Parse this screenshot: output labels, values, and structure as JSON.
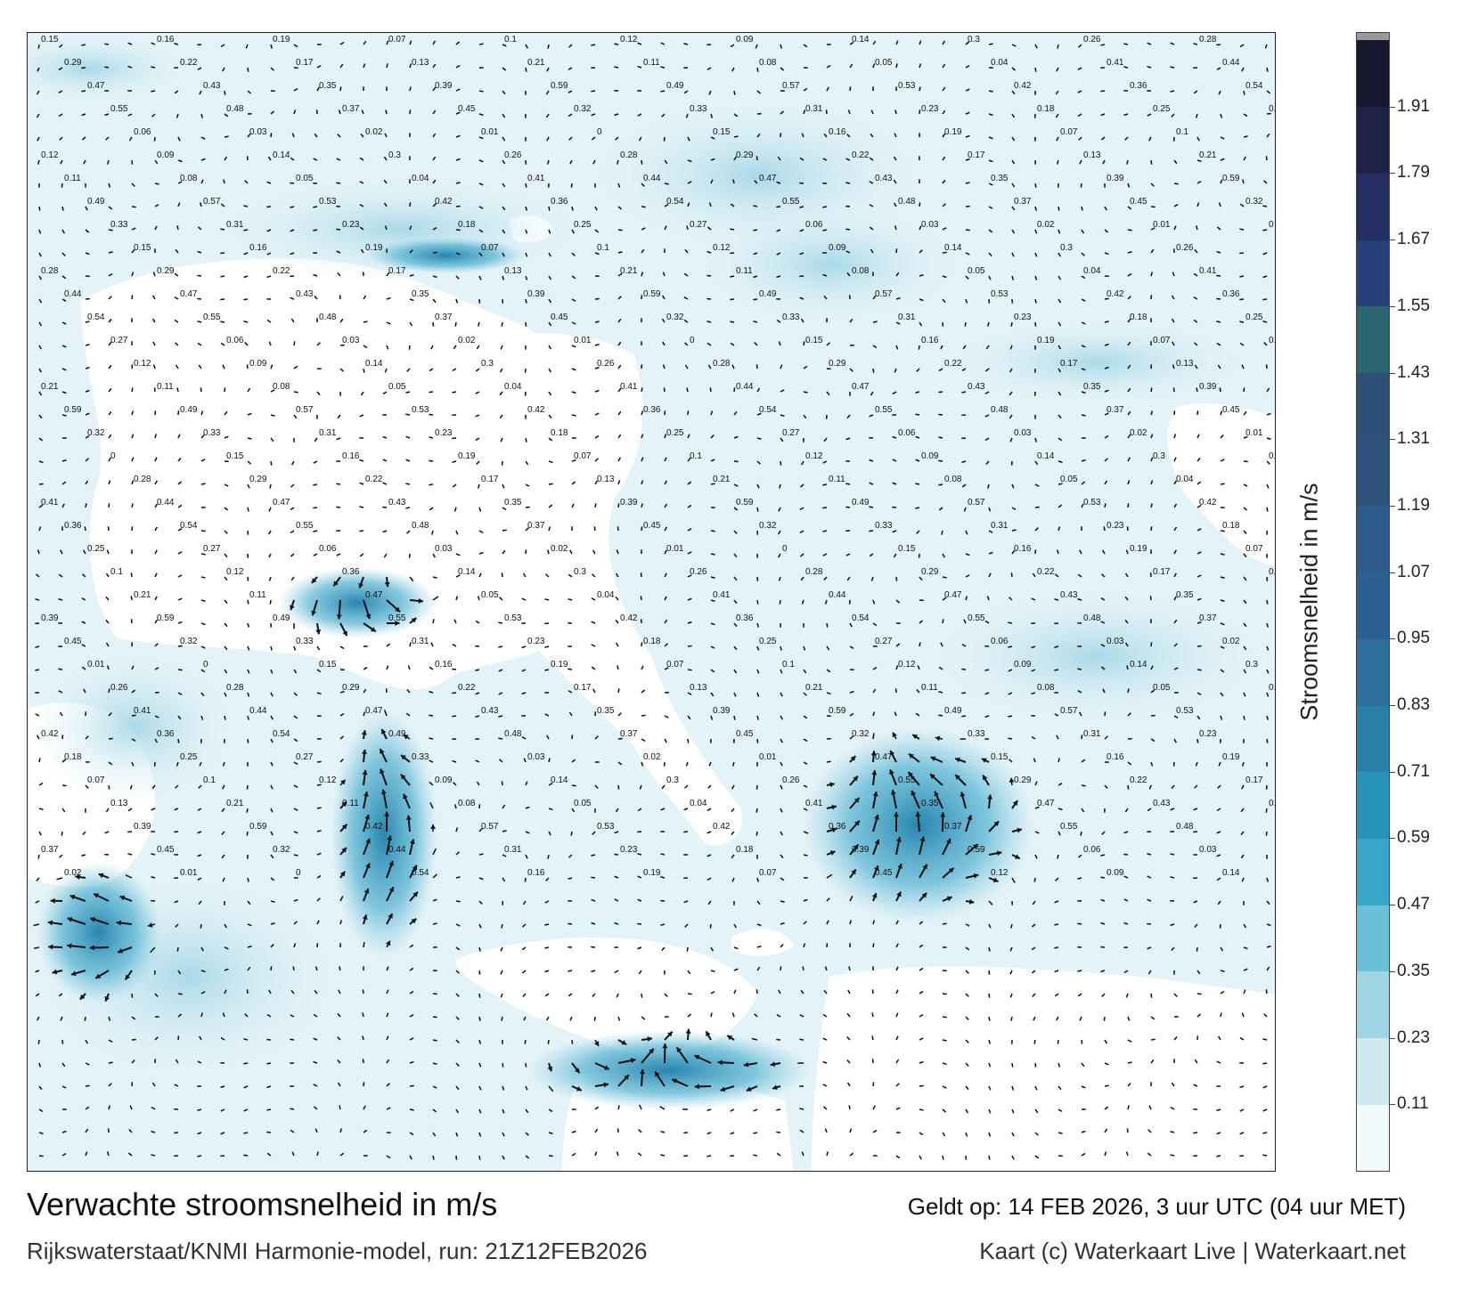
{
  "header": {},
  "map": {
    "title": "Verwachte stroomsnelheid in m/s",
    "subtitle": "Rijkswaterstaat/KNMI Harmonie-model, run: 21Z12FEB2026",
    "valid_time": "Geldt op: 14 FEB 2026, 3 uur UTC (04 uur MET)",
    "credits": "Kaart (c) Waterkaart Live | Waterkaart.net",
    "variable": "current-speed",
    "unit": "m/s",
    "colors": {
      "land": "#ffffff",
      "water_low": "#e4f3f8",
      "water_mid": "#6cc0da",
      "water_high": "#1f7fab",
      "arrow": "#111111",
      "frame": "#222222"
    },
    "sample_labels": [
      "0.15",
      "0.16",
      "0.19",
      "0.07",
      "0.1",
      "0.12",
      "0.09",
      "0.14",
      "0.3",
      "0.26",
      "0.28",
      "0.29",
      "0.22",
      "0.17",
      "0.13",
      "0.21",
      "0.11",
      "0.08",
      "0.05",
      "0.04",
      "0.41",
      "0.44",
      "0.47",
      "0.43",
      "0.35",
      "0.39",
      "0.59",
      "0.49",
      "0.57",
      "0.53",
      "0.42",
      "0.36",
      "0.54",
      "0.55",
      "0.48",
      "0.37",
      "0.45",
      "0.32",
      "0.33",
      "0.31",
      "0.23",
      "0.18",
      "0.25",
      "0.27",
      "0.06",
      "0.03",
      "0.02",
      "0.01",
      "0"
    ]
  },
  "colorbar": {
    "label": "Stroomsnelheid in m/s",
    "ticks": [
      "0.11",
      "0.23",
      "0.35",
      "0.47",
      "0.59",
      "0.71",
      "0.83",
      "0.95",
      "1.07",
      "1.19",
      "1.31",
      "1.43",
      "1.55",
      "1.67",
      "1.79",
      "1.91"
    ],
    "colors": [
      "#f2f9fb",
      "#cfe9f1",
      "#9fd4e5",
      "#6cbfd8",
      "#3aa6c9",
      "#2793b8",
      "#2a7fa6",
      "#2f6f9c",
      "#2c5f93",
      "#2d5b8a",
      "#2e547e",
      "#2e4f77",
      "#2b6570",
      "#253f78",
      "#252f64",
      "#1d2246",
      "#15182e"
    ],
    "cap_color": "#999999"
  }
}
